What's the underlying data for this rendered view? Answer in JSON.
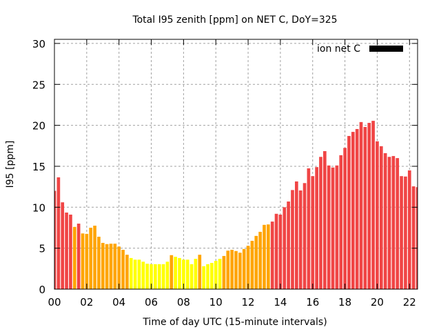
{
  "chart_data": {
    "type": "bar",
    "title": "Total I95 zenith [ppm] on NET C, DoY=325",
    "xlabel": "Time of day UTC (15-minute intervals)",
    "ylabel": "I95 [ppm]",
    "legend": {
      "label": "ion net C",
      "position": "top-right",
      "swatch_color": "#000000"
    },
    "xlim": [
      0,
      22.5
    ],
    "ylim": [
      0,
      30.5
    ],
    "grid": true,
    "x_ticks": [
      0,
      2,
      4,
      6,
      8,
      10,
      12,
      14,
      16,
      18,
      20,
      22
    ],
    "x_tick_labels": [
      "00",
      "02",
      "04",
      "06",
      "08",
      "10",
      "12",
      "14",
      "16",
      "18",
      "20",
      "22"
    ],
    "y_ticks": [
      0,
      5,
      10,
      15,
      20,
      25,
      30
    ],
    "y_tick_labels": [
      "0",
      "5",
      "10",
      "15",
      "20",
      "25",
      "30"
    ],
    "interval_hours": 0.25,
    "color_thresholds": {
      "red_min": 8,
      "orange_min": 4
    },
    "colors": {
      "red": "#f04545",
      "orange": "#ffa500",
      "yellow": "#ffff00"
    },
    "values": [
      12.0,
      13.65,
      10.6,
      9.35,
      9.1,
      7.6,
      8.0,
      6.8,
      6.75,
      7.5,
      7.75,
      6.4,
      5.65,
      5.5,
      5.55,
      5.55,
      5.2,
      4.8,
      4.2,
      3.8,
      3.6,
      3.6,
      3.35,
      3.1,
      3.05,
      3.05,
      3.05,
      3.05,
      3.35,
      4.15,
      3.95,
      3.8,
      3.6,
      3.6,
      3.05,
      3.7,
      4.2,
      2.8,
      3.05,
      3.2,
      3.45,
      3.7,
      4.05,
      4.7,
      4.8,
      4.65,
      4.45,
      4.9,
      5.3,
      5.9,
      6.5,
      7.0,
      7.85,
      7.9,
      8.25,
      9.2,
      9.1,
      10.0,
      10.7,
      12.1,
      13.15,
      12.05,
      12.95,
      14.75,
      13.8,
      14.9,
      16.15,
      16.85,
      15.1,
      14.85,
      15.1,
      16.35,
      17.25,
      18.7,
      19.2,
      19.55,
      20.4,
      19.8,
      20.3,
      20.55,
      18.05,
      17.45,
      16.6,
      16.15,
      16.25,
      16.0,
      13.8,
      13.75,
      14.5,
      12.55,
      12.45
    ]
  }
}
